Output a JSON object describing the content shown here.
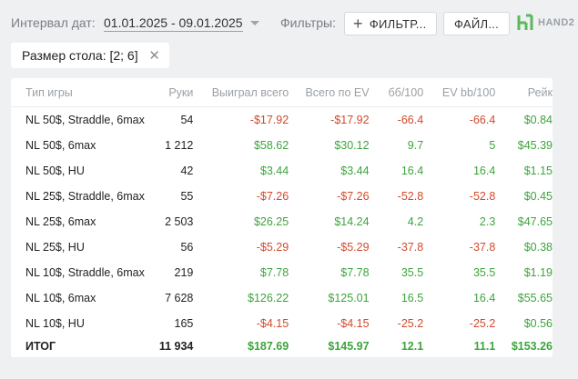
{
  "topbar": {
    "interval_label": "Интервал дат:",
    "date_range": "01.01.2025 - 09.01.2025",
    "filters_label": "Фильтры:",
    "filter_button": "ФИЛЬТР...",
    "file_button": "ФАЙЛ...",
    "logo_text": "HAND2"
  },
  "chip": {
    "label": "Размер стола: [2; 6]"
  },
  "table": {
    "columns": [
      "Тип игры",
      "Руки",
      "Выиграл всего",
      "Всего по EV",
      "бб/100",
      "EV bb/100",
      "Рейк"
    ],
    "rows": [
      [
        "NL 50$, Straddle, 6max",
        "54",
        "-$17.92",
        "-$17.92",
        "-66.4",
        "-66.4",
        "$0.84"
      ],
      [
        "NL 50$, 6max",
        "1 212",
        "$58.62",
        "$30.12",
        "9.7",
        "5",
        "$45.39"
      ],
      [
        "NL 50$, HU",
        "42",
        "$3.44",
        "$3.44",
        "16.4",
        "16.4",
        "$1.15"
      ],
      [
        "NL 25$, Straddle, 6max",
        "55",
        "-$7.26",
        "-$7.26",
        "-52.8",
        "-52.8",
        "$0.45"
      ],
      [
        "NL 25$, 6max",
        "2 503",
        "$26.25",
        "$14.24",
        "4.2",
        "2.3",
        "$47.65"
      ],
      [
        "NL 25$, HU",
        "56",
        "-$5.29",
        "-$5.29",
        "-37.8",
        "-37.8",
        "$0.38"
      ],
      [
        "NL 10$, Straddle, 6max",
        "219",
        "$7.78",
        "$7.78",
        "35.5",
        "35.5",
        "$1.19"
      ],
      [
        "NL 10$, 6max",
        "7 628",
        "$126.22",
        "$125.01",
        "16.5",
        "16.4",
        "$55.65"
      ],
      [
        "NL 10$, HU",
        "165",
        "-$4.15",
        "-$4.15",
        "-25.2",
        "-25.2",
        "$0.56"
      ]
    ],
    "total": [
      "ИТОГ",
      "11 934",
      "$187.69",
      "$145.97",
      "12.1",
      "11.1",
      "$153.26"
    ]
  },
  "colors": {
    "positive": "#3da43d",
    "negative": "#d24a2c",
    "logo": "#5cb85c"
  }
}
